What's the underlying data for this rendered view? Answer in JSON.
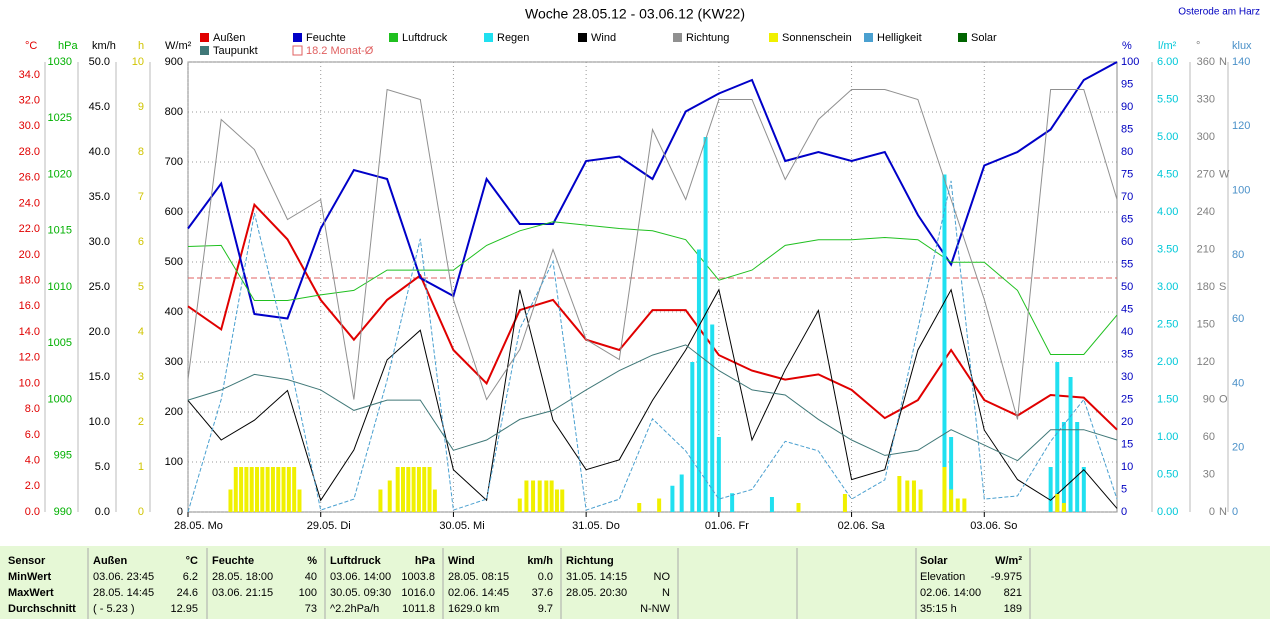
{
  "chart_data": {
    "type": "line",
    "title": "Woche 28.05.12 - 03.06.12 (KW22)",
    "location": "Osterode am Harz",
    "xlim": [
      0,
      7
    ],
    "xticks": [
      {
        "value": 0,
        "label": "28.05.  Mo"
      },
      {
        "value": 1,
        "label": "29.05.  Di"
      },
      {
        "value": 2,
        "label": "30.05.  Mi"
      },
      {
        "value": 3,
        "label": "31.05.  Do"
      },
      {
        "value": 4,
        "label": "01.06.  Fr"
      },
      {
        "value": 5,
        "label": "02.06.  Sa"
      },
      {
        "value": 6,
        "label": "03.06.  So"
      }
    ],
    "axes": [
      {
        "unit": "°C",
        "side": "left",
        "color": "#e00000",
        "lim": [
          0,
          35
        ],
        "ticks": [
          {
            "value": 0,
            "label": "0.0"
          },
          {
            "value": 2,
            "label": "2.0"
          },
          {
            "value": 4,
            "label": "4.0"
          },
          {
            "value": 6,
            "label": "6.0"
          },
          {
            "value": 8,
            "label": "8.0"
          },
          {
            "value": 10,
            "label": "10.0"
          },
          {
            "value": 12,
            "label": "12.0"
          },
          {
            "value": 14,
            "label": "14.0"
          },
          {
            "value": 16,
            "label": "16.0"
          },
          {
            "value": 18,
            "label": "18.0"
          },
          {
            "value": 20,
            "label": "20.0"
          },
          {
            "value": 22,
            "label": "22.0"
          },
          {
            "value": 24,
            "label": "24.0"
          },
          {
            "value": 26,
            "label": "26.0"
          },
          {
            "value": 28,
            "label": "28.0"
          },
          {
            "value": 30,
            "label": "30.0"
          },
          {
            "value": 32,
            "label": "32.0"
          },
          {
            "value": 34,
            "label": "34.0"
          }
        ]
      },
      {
        "unit": "hPa",
        "side": "left",
        "color": "#00b000",
        "lim": [
          990,
          1030
        ],
        "ticks": [
          990,
          995,
          1000,
          1005,
          1010,
          1015,
          1020,
          1025,
          1030
        ]
      },
      {
        "unit": "km/h",
        "side": "left",
        "color": "#000000",
        "lim": [
          0,
          50
        ],
        "ticks": [
          {
            "value": 0,
            "label": "0.0"
          },
          {
            "value": 5,
            "label": "5.0"
          },
          {
            "value": 10,
            "label": "10.0"
          },
          {
            "value": 15,
            "label": "15.0"
          },
          {
            "value": 20,
            "label": "20.0"
          },
          {
            "value": 25,
            "label": "25.0"
          },
          {
            "value": 30,
            "label": "30.0"
          },
          {
            "value": 35,
            "label": "35.0"
          },
          {
            "value": 40,
            "label": "40.0"
          },
          {
            "value": 45,
            "label": "45.0"
          },
          {
            "value": 50,
            "label": "50.0"
          }
        ]
      },
      {
        "unit": "h",
        "side": "left",
        "color": "#d0c400",
        "lim": [
          0,
          10
        ],
        "ticks": [
          0,
          1,
          2,
          3,
          4,
          5,
          6,
          7,
          8,
          9,
          10
        ]
      },
      {
        "unit": "W/m²",
        "side": "left",
        "color": "#000000",
        "lim": [
          0,
          900
        ],
        "ticks": [
          0,
          100,
          200,
          300,
          400,
          500,
          600,
          700,
          800,
          900
        ]
      },
      {
        "unit": "%",
        "side": "right",
        "color": "#0000c0",
        "lim": [
          0,
          100
        ],
        "ticks": [
          0,
          5,
          10,
          15,
          20,
          25,
          30,
          35,
          40,
          45,
          50,
          55,
          60,
          65,
          70,
          75,
          80,
          85,
          90,
          95,
          100
        ]
      },
      {
        "unit": "l/m²",
        "side": "right",
        "color": "#00c8d8",
        "lim": [
          0,
          6
        ],
        "ticks": [
          {
            "value": 0,
            "label": "0.00"
          },
          {
            "value": 0.5,
            "label": "0.50"
          },
          {
            "value": 1,
            "label": "1.00"
          },
          {
            "value": 1.5,
            "label": "1.50"
          },
          {
            "value": 2,
            "label": "2.00"
          },
          {
            "value": 2.5,
            "label": "2.50"
          },
          {
            "value": 3,
            "label": "3.00"
          },
          {
            "value": 3.5,
            "label": "3.50"
          },
          {
            "value": 4,
            "label": "4.00"
          },
          {
            "value": 4.5,
            "label": "4.50"
          },
          {
            "value": 5,
            "label": "5.00"
          },
          {
            "value": 5.5,
            "label": "5.50"
          },
          {
            "value": 6,
            "label": "6.00"
          }
        ]
      },
      {
        "unit": "°",
        "side": "right",
        "color": "#808080",
        "lim": [
          0,
          360
        ],
        "ticks": [
          0,
          30,
          60,
          90,
          120,
          150,
          180,
          210,
          240,
          270,
          300,
          330,
          360
        ],
        "compass": [
          {
            "value": 0,
            "label": "N"
          },
          {
            "value": 90,
            "label": "O"
          },
          {
            "value": 180,
            "label": "S"
          },
          {
            "value": 270,
            "label": "W"
          },
          {
            "value": 360,
            "label": "N"
          }
        ]
      },
      {
        "unit": "klux",
        "side": "right",
        "color": "#4a90c8",
        "lim": [
          0,
          140
        ],
        "ticks": [
          0,
          20,
          40,
          60,
          80,
          100,
          120,
          140
        ]
      }
    ],
    "x": [
      0,
      0.25,
      0.5,
      0.75,
      1,
      1.25,
      1.5,
      1.75,
      2,
      2.25,
      2.5,
      2.75,
      3,
      3.25,
      3.5,
      3.75,
      4,
      4.25,
      4.5,
      4.75,
      5,
      5.25,
      5.5,
      5.75,
      6,
      6.25,
      6.5,
      6.75,
      7
    ],
    "series": [
      {
        "name": "Außen",
        "color": "#e00000",
        "axis": "°C",
        "kind": "line",
        "values": [
          16,
          14.2,
          23.9,
          21.2,
          16.5,
          13.4,
          16.5,
          18.4,
          12.6,
          10,
          15.7,
          16.5,
          13.4,
          12.6,
          15.7,
          15.7,
          12.2,
          11,
          10.3,
          10.7,
          9.5,
          7.3,
          8.7,
          12.6,
          8.7,
          7.5,
          9.1,
          8.9,
          6.4
        ]
      },
      {
        "name": "Feuchte",
        "color": "#0000c8",
        "axis": "%",
        "kind": "line",
        "values": [
          63,
          73,
          44,
          43,
          63,
          76,
          74,
          52,
          48,
          74,
          64,
          64,
          78,
          79,
          74,
          89,
          93,
          96,
          78,
          80,
          78,
          80,
          66,
          55,
          77,
          80,
          85,
          96,
          100
        ]
      },
      {
        "name": "Luftdruck",
        "color": "#20c020",
        "axis": "hPa",
        "kind": "line",
        "values": [
          1013.6,
          1013.7,
          1008.8,
          1008.8,
          1009.3,
          1009.7,
          1011.5,
          1011.5,
          1011.5,
          1013.7,
          1015,
          1015.8,
          1015.5,
          1015.2,
          1015,
          1014.2,
          1010.6,
          1011.5,
          1013.7,
          1014.2,
          1014.2,
          1014.4,
          1014.2,
          1012.2,
          1012.2,
          1009.7,
          1004,
          1004,
          1007.5
        ]
      },
      {
        "name": "Regen",
        "color": "#20e0f0",
        "axis": "l/m²",
        "kind": "bar",
        "x": [
          3.65,
          3.72,
          3.8,
          3.85,
          3.9,
          3.95,
          4,
          4.1,
          4.4,
          5.7,
          5.75,
          6.5,
          6.55,
          6.6,
          6.65,
          6.7,
          6.75
        ],
        "values": [
          0.35,
          0.5,
          2,
          3.5,
          5,
          2.5,
          1,
          0.25,
          0.2,
          4.5,
          1,
          0.6,
          2,
          1.2,
          1.8,
          1.2,
          0.6
        ]
      },
      {
        "name": "Wind",
        "color": "#000000",
        "axis": "km/h",
        "kind": "line",
        "values": [
          12.4,
          8,
          10.2,
          13.5,
          1.3,
          6.9,
          16.9,
          20.2,
          4.7,
          1.3,
          24.7,
          10.2,
          4.7,
          5.8,
          12.4,
          18,
          24.7,
          8,
          15.8,
          22.4,
          3.6,
          4.7,
          18,
          24.7,
          9.1,
          3.6,
          1.3,
          4.7,
          0.4
        ]
      },
      {
        "name": "Richtung",
        "color": "#909090",
        "axis": "°",
        "kind": "line",
        "values": [
          106,
          314,
          290,
          234,
          250,
          90,
          338,
          330,
          170,
          90,
          130,
          210,
          138,
          122,
          306,
          250,
          330,
          330,
          266,
          314,
          338,
          338,
          330,
          250,
          170,
          74,
          338,
          338,
          250
        ]
      },
      {
        "name": "Sonnenschein",
        "color": "#f0f000",
        "axis": "h",
        "kind": "bar",
        "x": [
          0.32,
          0.36,
          0.4,
          0.44,
          0.48,
          0.52,
          0.56,
          0.6,
          0.64,
          0.68,
          0.72,
          0.76,
          0.8,
          0.84,
          1.45,
          1.52,
          1.58,
          1.62,
          1.66,
          1.7,
          1.74,
          1.78,
          1.82,
          1.86,
          2.5,
          2.55,
          2.6,
          2.65,
          2.7,
          2.74,
          2.78,
          2.82,
          3.4,
          3.55,
          4.6,
          4.95,
          5.36,
          5.42,
          5.47,
          5.52,
          5.7,
          5.75,
          5.8,
          5.85,
          6.55,
          6.6
        ],
        "values": [
          0.5,
          1,
          1,
          1,
          1,
          1,
          1,
          1,
          1,
          1,
          1,
          1,
          1,
          0.5,
          0.5,
          0.7,
          1,
          1,
          1,
          1,
          1,
          1,
          1,
          0.5,
          0.3,
          0.7,
          0.7,
          0.7,
          0.7,
          0.7,
          0.5,
          0.5,
          0.2,
          0.3,
          0.2,
          0.4,
          0.8,
          0.7,
          0.7,
          0.5,
          1,
          0.5,
          0.3,
          0.3,
          0.4,
          0.2
        ]
      },
      {
        "name": "Helligkeit",
        "color": "#4aa0d0",
        "axis": "klux",
        "kind": "dashed",
        "values": [
          0,
          35,
          93,
          50,
          0.6,
          4,
          41,
          85,
          0.6,
          4,
          57,
          78,
          0.6,
          4,
          29,
          19,
          4,
          7,
          22,
          19,
          4,
          10,
          57,
          103,
          4,
          5,
          22,
          35,
          4
        ]
      },
      {
        "name": "Solar",
        "color": "#006400",
        "axis": "W/m²",
        "kind": "line"
      },
      {
        "name": "Taupunkt",
        "color": "#407878",
        "axis": "°C",
        "kind": "line",
        "values": [
          8.7,
          9.5,
          10.7,
          10.3,
          9.5,
          7.9,
          8.7,
          8.7,
          4.8,
          5.6,
          7.2,
          7.9,
          9.5,
          11,
          12.2,
          13,
          11,
          9.5,
          9.1,
          7.2,
          5.6,
          4.4,
          4.8,
          6.4,
          5.2,
          4,
          6.4,
          6.4,
          5.6
        ]
      }
    ],
    "reference_line": {
      "label": "18.2 Monat-Ø",
      "value": 18.2,
      "axis": "°C",
      "color": "#e06060"
    }
  },
  "table": {
    "row_labels": [
      "Sensor",
      "MinWert",
      "MaxWert",
      "Durchschnitt"
    ],
    "groups": [
      {
        "name": "Außen",
        "unit": "°C",
        "rows": [
          {
            "time": "03.06.  23:45",
            "value": "6.2"
          },
          {
            "time": "28.05.  14:45",
            "value": "24.6"
          },
          {
            "time": "( - 5.23 )",
            "value": "12.95"
          }
        ]
      },
      {
        "name": "Feuchte",
        "unit": "%",
        "rows": [
          {
            "time": "28.05.  18:00",
            "value": "40"
          },
          {
            "time": "03.06.  21:15",
            "value": "100"
          },
          {
            "value": "73"
          }
        ]
      },
      {
        "name": "Luftdruck",
        "unit": "hPa",
        "rows": [
          {
            "time": "03.06.  14:00",
            "value": "1003.8"
          },
          {
            "time": "30.05.  09:30",
            "value": "1016.0"
          },
          {
            "time": "^2.2hPa/h",
            "value": "1011.8"
          }
        ]
      },
      {
        "name": "Wind",
        "unit": "km/h",
        "rows": [
          {
            "time": "28.05.  08:15",
            "value": "0.0"
          },
          {
            "time": "02.06.  14:45",
            "value": "37.6"
          },
          {
            "time": "1629.0 km",
            "value": "9.7"
          }
        ]
      },
      {
        "name": "Richtung",
        "rows": [
          {
            "time": "31.05.  14:15",
            "value": "NO"
          },
          {
            "time": "28.05.  20:30",
            "value": "N"
          },
          {
            "value": "N-NW"
          }
        ]
      },
      {
        "name": "Solar",
        "unit": "W/m²",
        "rows": [
          {
            "time": "Elevation",
            "value": "-9.975"
          },
          {
            "time": "02.06.  14:00",
            "value": "821"
          },
          {
            "time": "35:15 h",
            "value": "189"
          }
        ]
      }
    ]
  }
}
